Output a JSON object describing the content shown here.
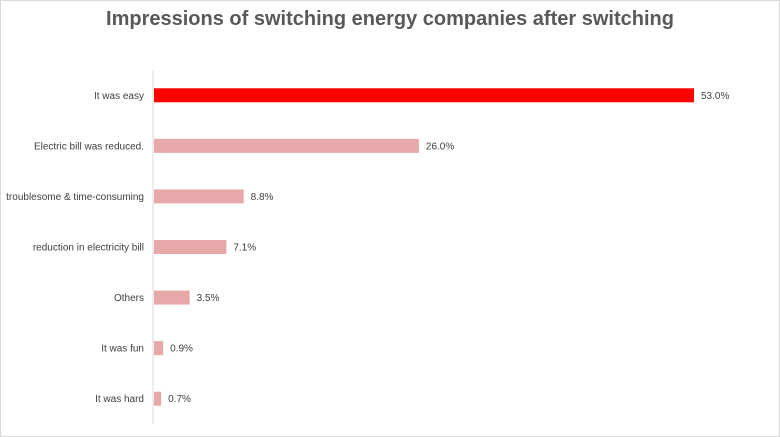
{
  "chart_data": {
    "type": "bar",
    "orientation": "horizontal",
    "title": "Impressions of switching energy companies after switching",
    "categories": [
      "It was easy",
      "Electric bill was reduced.",
      "troublesome & time-consuming",
      "reduction in electricity bill",
      "Others",
      "It was fun",
      "It was hard"
    ],
    "values": [
      53.0,
      26.0,
      8.8,
      7.1,
      3.5,
      0.9,
      0.7
    ],
    "value_labels": [
      "53.0%",
      "26.0%",
      "8.8%",
      "7.1%",
      "3.5%",
      "0.9%",
      "0.7%"
    ],
    "xlim": [
      0,
      53.0
    ],
    "grid": false,
    "legend": "none",
    "colors": {
      "highlight": "#ff0000",
      "default": "#e6a8a8",
      "axis": "#d9d9d9"
    }
  }
}
